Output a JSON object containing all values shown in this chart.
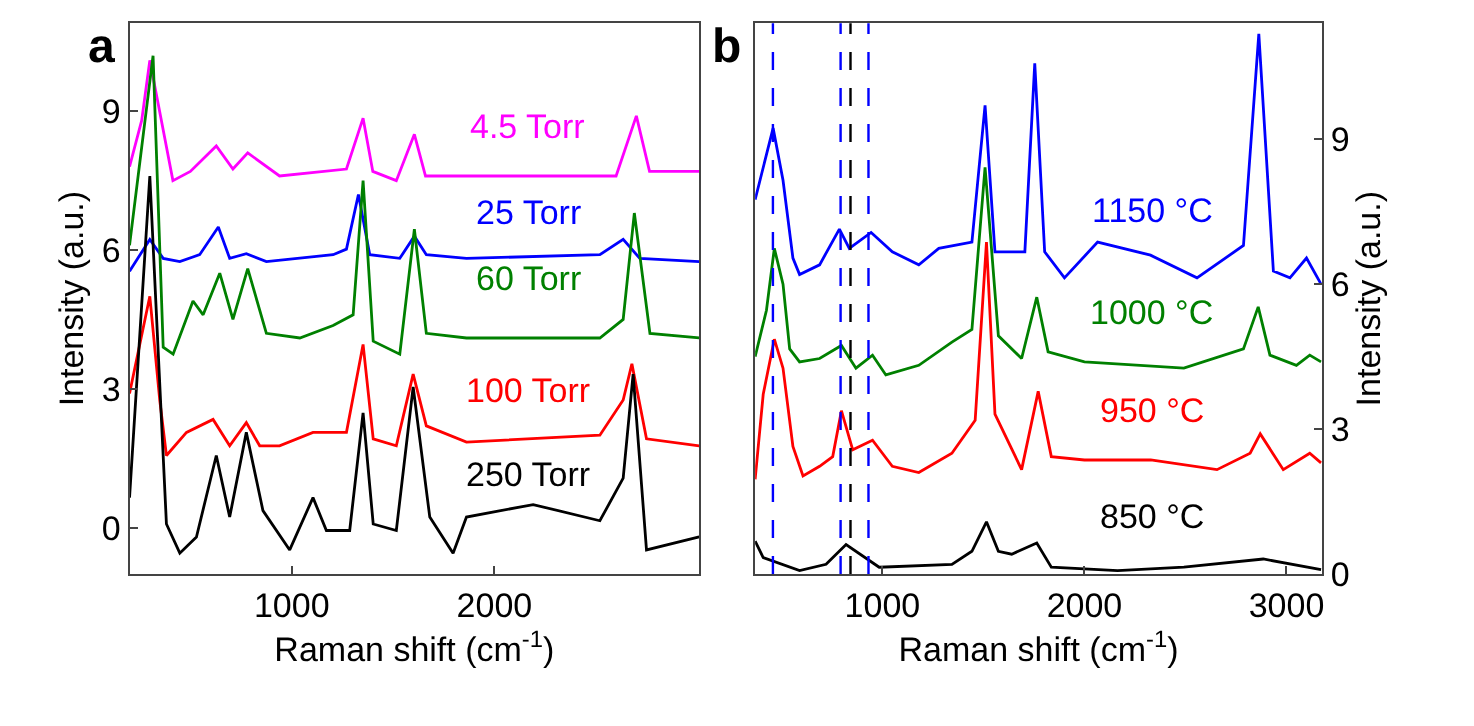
{
  "chart_data": [
    {
      "type": "line",
      "title": "a",
      "xlabel": "Raman shift (cm$^{-1}$)",
      "ylabel": "Intensity (a.u.)",
      "xlim": [
        200,
        3010
      ],
      "ylim": [
        -1,
        10.9
      ],
      "xticks": [
        1000,
        2000
      ],
      "yticks": [
        0,
        3,
        6,
        9
      ],
      "legend": false,
      "marker": "none",
      "line_style": "solid",
      "series": [
        {
          "name": "4.5 Torr",
          "color": "#ff00ff",
          "x": [
            200,
            260,
            300,
            414,
            500,
            628,
            710,
            783,
            940,
            1270,
            1352,
            1400,
            1516,
            1605,
            1660,
            2000,
            2600,
            2700,
            2765,
            3010
          ],
          "values": [
            7.8,
            8.8,
            10.1,
            7.5,
            7.7,
            8.25,
            7.75,
            8.1,
            7.6,
            7.75,
            8.85,
            7.7,
            7.5,
            8.5,
            7.6,
            7.6,
            7.6,
            8.9,
            7.7,
            7.7
          ]
        },
        {
          "name": "25 Torr",
          "color": "#0000ff",
          "x": [
            200,
            300,
            366,
            448,
            546,
            638,
            694,
            776,
            875,
            1204,
            1270,
            1329,
            1385,
            1533,
            1605,
            1664,
            1862,
            2520,
            2635,
            2717,
            3010
          ],
          "values": [
            5.54,
            6.23,
            5.82,
            5.75,
            5.9,
            6.5,
            5.82,
            5.92,
            5.75,
            5.9,
            6.02,
            7.2,
            5.9,
            5.82,
            6.3,
            5.9,
            5.82,
            5.9,
            6.23,
            5.82,
            5.75
          ]
        },
        {
          "name": "60 Torr",
          "color": "#008000",
          "x": [
            200,
            316,
            366,
            415,
            513,
            563,
            645,
            710,
            783,
            875,
            1040,
            1204,
            1303,
            1352,
            1402,
            1533,
            1605,
            1664,
            1862,
            2520,
            2635,
            2690,
            2767,
            3010
          ],
          "values": [
            6.1,
            10.2,
            3.9,
            3.75,
            4.9,
            4.6,
            5.5,
            4.5,
            5.6,
            4.2,
            4.1,
            4.37,
            4.6,
            7.5,
            4.03,
            3.75,
            6.45,
            4.2,
            4.1,
            4.1,
            4.5,
            6.8,
            4.2,
            4.1
          ]
        },
        {
          "name": "100 Torr",
          "color": "#ff0000",
          "x": [
            200,
            300,
            349,
            382,
            481,
            612,
            694,
            776,
            842,
            940,
            1105,
            1270,
            1352,
            1402,
            1516,
            1599,
            1664,
            1862,
            2520,
            2635,
            2678,
            2750,
            3010
          ],
          "values": [
            2.9,
            5.0,
            2.76,
            1.56,
            2.06,
            2.34,
            1.77,
            2.27,
            1.77,
            1.77,
            2.06,
            2.06,
            3.96,
            1.92,
            1.77,
            3.32,
            2.2,
            1.85,
            2.0,
            2.76,
            3.54,
            1.92,
            1.77
          ]
        },
        {
          "name": "250 Torr",
          "color": "#000000",
          "x": [
            200,
            300,
            382,
            448,
            530,
            628,
            694,
            776,
            858,
            990,
            1105,
            1171,
            1286,
            1352,
            1402,
            1516,
            1599,
            1681,
            1796,
            1862,
            2191,
            2520,
            2635,
            2684,
            2750,
            3010
          ],
          "values": [
            0.65,
            7.6,
            0.08,
            -0.55,
            -0.2,
            1.56,
            0.23,
            2.06,
            0.37,
            -0.48,
            0.65,
            -0.06,
            -0.06,
            2.48,
            0.08,
            -0.06,
            3.04,
            0.23,
            -0.55,
            0.23,
            0.5,
            0.15,
            1.07,
            3.32,
            -0.48,
            -0.2
          ]
        }
      ]
    },
    {
      "type": "line",
      "title": "b",
      "xlabel": "Raman shift (cm$^{-1}$)",
      "ylabel": "Intensity (a.u.)",
      "xlim": [
        370,
        3175
      ],
      "ylim": [
        0,
        11.4
      ],
      "xticks": [
        1000,
        2000,
        3000
      ],
      "yticks": [
        0,
        3,
        6,
        9
      ],
      "legend": false,
      "marker": "none",
      "line_style": "solid",
      "ref_lines": [
        {
          "axis": "x",
          "value": 458,
          "color": "#0000ff",
          "line_style": "dashed"
        },
        {
          "axis": "x",
          "value": 793,
          "color": "#0000ff",
          "line_style": "dashed"
        },
        {
          "axis": "x",
          "value": 842,
          "color": "#000000",
          "line_style": "dashed"
        },
        {
          "axis": "x",
          "value": 931,
          "color": "#0000ff",
          "line_style": "dashed"
        }
      ],
      "series": [
        {
          "name": "1150 °C",
          "color": "#0000ff",
          "x": [
            370,
            459,
            508,
            557,
            590,
            689,
            787,
            836,
            944,
            1049,
            1180,
            1279,
            1443,
            1508,
            1557,
            1705,
            1754,
            1803,
            1901,
            2065,
            2327,
            2557,
            2787,
            2863,
            2935,
            3017,
            3099,
            3171
          ],
          "values": [
            7.75,
            9.23,
            8.15,
            6.54,
            6.2,
            6.4,
            7.14,
            6.74,
            7.07,
            6.67,
            6.4,
            6.74,
            6.87,
            9.7,
            6.67,
            6.67,
            10.57,
            6.67,
            6.13,
            6.87,
            6.6,
            6.13,
            6.8,
            11.18,
            6.27,
            6.13,
            6.54,
            6.0
          ]
        },
        {
          "name": "1000 °C",
          "color": "#008000",
          "x": [
            370,
            426,
            465,
            508,
            541,
            590,
            689,
            797,
            869,
            951,
            1017,
            1180,
            1344,
            1443,
            1508,
            1574,
            1689,
            1764,
            1820,
            2000,
            2492,
            2787,
            2860,
            2918,
            3049,
            3115,
            3171
          ],
          "values": [
            4.5,
            5.46,
            6.74,
            6.0,
            4.66,
            4.39,
            4.46,
            4.73,
            4.26,
            4.53,
            4.12,
            4.32,
            4.8,
            5.06,
            8.42,
            4.93,
            4.46,
            5.73,
            4.6,
            4.39,
            4.26,
            4.66,
            5.53,
            4.53,
            4.32,
            4.53,
            4.39
          ]
        },
        {
          "name": "950 °C",
          "color": "#ff0000",
          "x": [
            370,
            410,
            465,
            508,
            557,
            607,
            689,
            754,
            797,
            853,
            951,
            1049,
            1180,
            1344,
            1459,
            1515,
            1557,
            1689,
            1771,
            1836,
            2000,
            2328,
            2656,
            2820,
            2870,
            2984,
            3115,
            3171
          ],
          "values": [
            1.96,
            3.72,
            4.86,
            4.26,
            2.64,
            2.03,
            2.23,
            2.43,
            3.38,
            2.57,
            2.77,
            2.23,
            2.1,
            2.5,
            3.18,
            6.87,
            3.31,
            2.16,
            3.78,
            2.43,
            2.36,
            2.36,
            2.16,
            2.5,
            2.9,
            2.16,
            2.5,
            2.3
          ]
        },
        {
          "name": "850 °C",
          "color": "#000000",
          "x": [
            370,
            410,
            590,
            721,
            820,
            984,
            1344,
            1443,
            1515,
            1574,
            1640,
            1764,
            1836,
            2164,
            2492,
            2885,
            3171
          ],
          "values": [
            0.68,
            0.34,
            0.07,
            0.2,
            0.61,
            0.14,
            0.2,
            0.47,
            1.08,
            0.47,
            0.41,
            0.64,
            0.14,
            0.07,
            0.14,
            0.31,
            0.09
          ]
        }
      ]
    }
  ]
}
